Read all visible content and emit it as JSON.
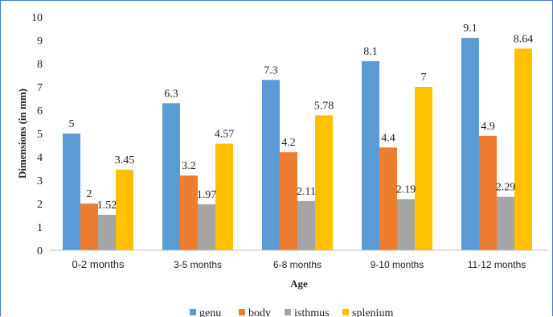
{
  "chart_data": {
    "type": "bar",
    "categories": [
      "0-2 months",
      "3-5 months",
      "6-8 months",
      "9-10 months",
      "11-12 months"
    ],
    "series": [
      {
        "name": "genu",
        "color": "#5b9bd5",
        "values": [
          5,
          6.3,
          7.3,
          8.1,
          9.1
        ],
        "labels": [
          "5",
          "6.3",
          "7.3",
          "8.1",
          "9.1"
        ]
      },
      {
        "name": "body",
        "color": "#ed7d31",
        "values": [
          2,
          3.2,
          4.2,
          4.4,
          4.9
        ],
        "labels": [
          "2",
          "3.2",
          "4.2",
          "4.4",
          "4.9"
        ]
      },
      {
        "name": "isthmus",
        "color": "#a5a5a5",
        "values": [
          1.52,
          1.97,
          2.11,
          2.19,
          2.29
        ],
        "labels": [
          "1.52",
          "1.97",
          "2.11",
          "2.19",
          "2.29"
        ]
      },
      {
        "name": "splenium",
        "color": "#ffc000",
        "values": [
          3.45,
          4.57,
          5.78,
          7,
          8.64
        ],
        "labels": [
          "3.45",
          "4.57",
          "5.78",
          "7",
          "8.64"
        ]
      }
    ],
    "title": "",
    "xlabel": "Age",
    "ylabel": "Dimensions  (in mm)",
    "ylim": [
      0,
      10
    ],
    "yticks": [
      "0",
      "1",
      "2",
      "3",
      "4",
      "5",
      "6",
      "7",
      "8",
      "9",
      "10"
    ],
    "grid": false,
    "legend_position": "bottom"
  }
}
